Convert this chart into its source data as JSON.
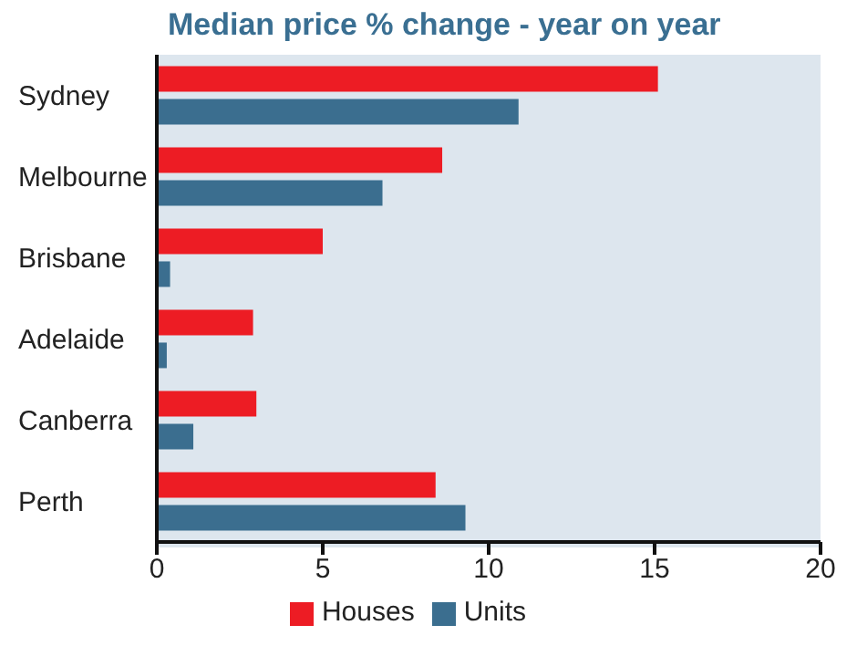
{
  "chart_data": {
    "type": "bar",
    "orientation": "horizontal",
    "title": "Median price % change - year on year",
    "categories": [
      "Sydney",
      "Melbourne",
      "Brisbane",
      "Adelaide",
      "Canberra",
      "Perth"
    ],
    "series": [
      {
        "name": "Houses",
        "color": "#ed1c24",
        "values": [
          15.1,
          8.6,
          5.0,
          2.9,
          3.0,
          8.4
        ]
      },
      {
        "name": "Units",
        "color": "#3b6e8f",
        "values": [
          10.9,
          6.8,
          0.4,
          0.3,
          1.1,
          9.3
        ]
      }
    ],
    "xlim": [
      0,
      20
    ],
    "xticks": [
      0,
      5,
      10,
      15,
      20
    ],
    "legend": "bottom"
  }
}
